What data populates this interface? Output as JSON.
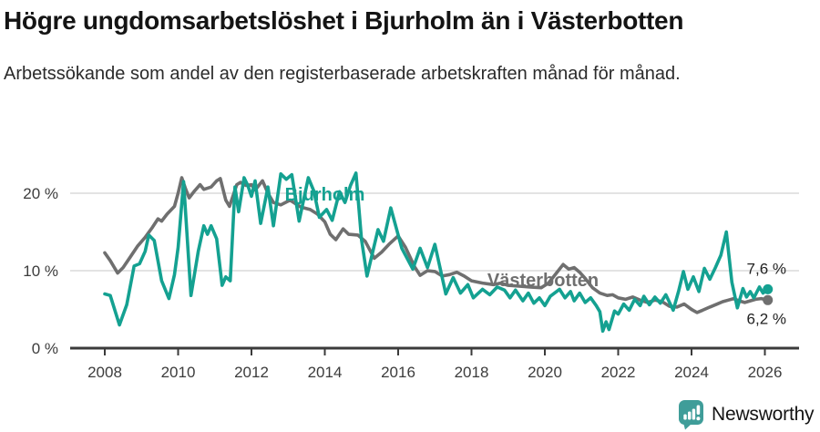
{
  "header": {
    "title": "Högre ungdomsarbetslöshet i Bjurholm än i Västerbotten",
    "subtitle": "Arbetssökande som andel av den registerbaserade arbetskraften månad för månad."
  },
  "chart_data": {
    "type": "line",
    "title": "Högre ungdomsarbetslöshet i Bjurholm än i Västerbotten",
    "subtitle": "Arbetssökande som andel av den registerbaserade arbetskraften månad för månad.",
    "unit": "%",
    "grid": true,
    "legend_position": "inline-labels-on-lines",
    "x_axis": {
      "tick_years": [
        2008,
        2010,
        2012,
        2014,
        2016,
        2018,
        2020,
        2022,
        2024,
        2026
      ],
      "range": [
        2007.9,
        2026.35
      ]
    },
    "y_axis": {
      "ticks": [
        {
          "value": 0,
          "label": "0 %"
        },
        {
          "value": 10,
          "label": "10 %"
        },
        {
          "value": 20,
          "label": "20 %"
        }
      ],
      "range": [
        0,
        23.2
      ]
    },
    "colors": {
      "bjurholm": "#14a191",
      "vasterbotten": "#6f6f6f",
      "gridline": "#dadada",
      "axis": "#3b3b3b",
      "tick_text": "#3c3c3c",
      "annotation_text": "#222222"
    },
    "series": [
      {
        "name": "Västerbotten",
        "color": "#6f6f6f",
        "end_label": "6,2 %",
        "end_value": 6.2,
        "label_at": [
          2019.95,
          8.85
        ],
        "end_label_side": "below",
        "points": [
          [
            2008.0,
            12.3
          ],
          [
            2008.15,
            11.3
          ],
          [
            2008.35,
            9.7
          ],
          [
            2008.5,
            10.4
          ],
          [
            2008.7,
            11.8
          ],
          [
            2008.9,
            13.2
          ],
          [
            2009.1,
            14.3
          ],
          [
            2009.3,
            15.6
          ],
          [
            2009.45,
            16.7
          ],
          [
            2009.55,
            16.4
          ],
          [
            2009.7,
            17.3
          ],
          [
            2009.9,
            18.3
          ],
          [
            2010.0,
            20.0
          ],
          [
            2010.1,
            22.0
          ],
          [
            2010.2,
            20.6
          ],
          [
            2010.3,
            19.4
          ],
          [
            2010.45,
            20.3
          ],
          [
            2010.6,
            21.1
          ],
          [
            2010.7,
            20.5
          ],
          [
            2010.9,
            20.8
          ],
          [
            2011.05,
            21.6
          ],
          [
            2011.15,
            21.9
          ],
          [
            2011.3,
            19.1
          ],
          [
            2011.4,
            18.3
          ],
          [
            2011.6,
            21.1
          ],
          [
            2011.7,
            21.4
          ],
          [
            2011.85,
            21.0
          ],
          [
            2012.0,
            21.1
          ],
          [
            2012.1,
            20.4
          ],
          [
            2012.3,
            21.6
          ],
          [
            2012.45,
            20.0
          ],
          [
            2012.6,
            18.8
          ],
          [
            2012.8,
            18.5
          ],
          [
            2013.05,
            19.1
          ],
          [
            2013.35,
            18.2
          ],
          [
            2013.6,
            17.9
          ],
          [
            2013.8,
            17.3
          ],
          [
            2014.0,
            16.3
          ],
          [
            2014.15,
            14.7
          ],
          [
            2014.3,
            14.0
          ],
          [
            2014.5,
            15.4
          ],
          [
            2014.65,
            14.7
          ],
          [
            2014.9,
            14.6
          ],
          [
            2015.1,
            13.8
          ],
          [
            2015.35,
            11.6
          ],
          [
            2015.55,
            12.4
          ],
          [
            2015.75,
            13.4
          ],
          [
            2016.0,
            14.5
          ],
          [
            2016.2,
            13.0
          ],
          [
            2016.45,
            10.5
          ],
          [
            2016.6,
            9.4
          ],
          [
            2016.8,
            10.0
          ],
          [
            2017.0,
            9.9
          ],
          [
            2017.2,
            9.3
          ],
          [
            2017.4,
            9.5
          ],
          [
            2017.6,
            9.8
          ],
          [
            2017.8,
            9.3
          ],
          [
            2018.0,
            8.7
          ],
          [
            2018.3,
            8.4
          ],
          [
            2018.6,
            8.2
          ],
          [
            2018.8,
            8.4
          ],
          [
            2019.0,
            8.1
          ],
          [
            2019.3,
            8.0
          ],
          [
            2019.6,
            7.9
          ],
          [
            2019.9,
            7.8
          ],
          [
            2020.1,
            8.4
          ],
          [
            2020.3,
            9.6
          ],
          [
            2020.5,
            10.8
          ],
          [
            2020.65,
            10.2
          ],
          [
            2020.8,
            10.4
          ],
          [
            2020.95,
            9.8
          ],
          [
            2021.1,
            9.0
          ],
          [
            2021.3,
            7.8
          ],
          [
            2021.5,
            7.1
          ],
          [
            2021.7,
            6.8
          ],
          [
            2021.85,
            6.9
          ],
          [
            2022.0,
            6.5
          ],
          [
            2022.2,
            6.3
          ],
          [
            2022.4,
            6.6
          ],
          [
            2022.6,
            6.2
          ],
          [
            2022.8,
            5.9
          ],
          [
            2023.0,
            6.2
          ],
          [
            2023.2,
            6.0
          ],
          [
            2023.4,
            5.4
          ],
          [
            2023.6,
            5.3
          ],
          [
            2023.8,
            5.7
          ],
          [
            2024.0,
            5.0
          ],
          [
            2024.15,
            4.6
          ],
          [
            2024.3,
            4.9
          ],
          [
            2024.5,
            5.3
          ],
          [
            2024.7,
            5.7
          ],
          [
            2024.85,
            6.0
          ],
          [
            2025.0,
            6.2
          ],
          [
            2025.15,
            6.4
          ],
          [
            2025.3,
            6.1
          ],
          [
            2025.45,
            5.9
          ],
          [
            2025.6,
            6.1
          ],
          [
            2025.75,
            6.3
          ],
          [
            2025.9,
            6.4
          ],
          [
            2026.08,
            6.2
          ]
        ]
      },
      {
        "name": "Bjurholm",
        "color": "#14a191",
        "end_label": "7,6 %",
        "end_value": 7.6,
        "label_at": [
          2014.0,
          19.9
        ],
        "end_label_side": "above",
        "points": [
          [
            2008.0,
            7.0
          ],
          [
            2008.15,
            6.8
          ],
          [
            2008.4,
            3.0
          ],
          [
            2008.6,
            5.6
          ],
          [
            2008.8,
            10.6
          ],
          [
            2008.95,
            10.9
          ],
          [
            2009.1,
            12.5
          ],
          [
            2009.2,
            14.6
          ],
          [
            2009.35,
            13.9
          ],
          [
            2009.55,
            8.7
          ],
          [
            2009.75,
            6.4
          ],
          [
            2009.9,
            9.5
          ],
          [
            2010.0,
            13.0
          ],
          [
            2010.15,
            21.5
          ],
          [
            2010.35,
            6.8
          ],
          [
            2010.55,
            12.5
          ],
          [
            2010.7,
            15.8
          ],
          [
            2010.8,
            14.7
          ],
          [
            2010.9,
            15.8
          ],
          [
            2011.05,
            14.1
          ],
          [
            2011.2,
            8.1
          ],
          [
            2011.3,
            9.2
          ],
          [
            2011.42,
            8.7
          ],
          [
            2011.55,
            20.8
          ],
          [
            2011.65,
            17.6
          ],
          [
            2011.8,
            22.0
          ],
          [
            2011.9,
            21.0
          ],
          [
            2012.0,
            19.6
          ],
          [
            2012.1,
            21.6
          ],
          [
            2012.25,
            16.1
          ],
          [
            2012.45,
            20.8
          ],
          [
            2012.6,
            15.8
          ],
          [
            2012.8,
            22.5
          ],
          [
            2012.95,
            21.8
          ],
          [
            2013.1,
            22.4
          ],
          [
            2013.3,
            16.4
          ],
          [
            2013.55,
            22.0
          ],
          [
            2013.7,
            20.3
          ],
          [
            2013.85,
            16.9
          ],
          [
            2014.05,
            17.9
          ],
          [
            2014.2,
            16.5
          ],
          [
            2014.4,
            20.2
          ],
          [
            2014.55,
            18.8
          ],
          [
            2014.7,
            21.0
          ],
          [
            2014.85,
            22.6
          ],
          [
            2015.0,
            14.0
          ],
          [
            2015.15,
            9.3
          ],
          [
            2015.45,
            15.3
          ],
          [
            2015.6,
            13.8
          ],
          [
            2015.8,
            18.1
          ],
          [
            2016.1,
            12.9
          ],
          [
            2016.4,
            10.2
          ],
          [
            2016.6,
            12.9
          ],
          [
            2016.8,
            10.4
          ],
          [
            2017.0,
            13.4
          ],
          [
            2017.3,
            7.0
          ],
          [
            2017.5,
            9.1
          ],
          [
            2017.7,
            7.1
          ],
          [
            2017.9,
            8.2
          ],
          [
            2018.05,
            6.5
          ],
          [
            2018.3,
            7.6
          ],
          [
            2018.5,
            6.9
          ],
          [
            2018.7,
            7.9
          ],
          [
            2018.9,
            7.5
          ],
          [
            2019.05,
            6.5
          ],
          [
            2019.2,
            7.5
          ],
          [
            2019.4,
            6.1
          ],
          [
            2019.55,
            7.1
          ],
          [
            2019.7,
            5.8
          ],
          [
            2019.85,
            6.5
          ],
          [
            2020.0,
            5.5
          ],
          [
            2020.15,
            6.7
          ],
          [
            2020.4,
            7.6
          ],
          [
            2020.55,
            6.5
          ],
          [
            2020.7,
            7.3
          ],
          [
            2020.8,
            6.1
          ],
          [
            2020.95,
            7.1
          ],
          [
            2021.1,
            5.9
          ],
          [
            2021.25,
            6.5
          ],
          [
            2021.4,
            5.5
          ],
          [
            2021.5,
            4.7
          ],
          [
            2021.58,
            2.2
          ],
          [
            2021.67,
            3.4
          ],
          [
            2021.75,
            2.4
          ],
          [
            2021.9,
            4.8
          ],
          [
            2022.0,
            4.4
          ],
          [
            2022.15,
            5.7
          ],
          [
            2022.3,
            4.9
          ],
          [
            2022.45,
            6.3
          ],
          [
            2022.6,
            5.5
          ],
          [
            2022.7,
            6.7
          ],
          [
            2022.85,
            5.6
          ],
          [
            2023.0,
            6.6
          ],
          [
            2023.15,
            5.8
          ],
          [
            2023.3,
            6.9
          ],
          [
            2023.5,
            4.9
          ],
          [
            2023.65,
            7.4
          ],
          [
            2023.78,
            9.9
          ],
          [
            2023.9,
            7.6
          ],
          [
            2024.05,
            9.2
          ],
          [
            2024.2,
            7.3
          ],
          [
            2024.35,
            10.3
          ],
          [
            2024.5,
            8.9
          ],
          [
            2024.65,
            10.4
          ],
          [
            2024.8,
            12.0
          ],
          [
            2024.95,
            15.0
          ],
          [
            2025.1,
            8.5
          ],
          [
            2025.25,
            5.2
          ],
          [
            2025.4,
            7.7
          ],
          [
            2025.5,
            6.6
          ],
          [
            2025.6,
            7.3
          ],
          [
            2025.7,
            6.5
          ],
          [
            2025.85,
            7.9
          ],
          [
            2025.95,
            7.1
          ],
          [
            2026.08,
            7.6
          ]
        ]
      }
    ]
  },
  "footer": {
    "brand": "Newsworthy",
    "brand_color": "#3f9d99"
  }
}
